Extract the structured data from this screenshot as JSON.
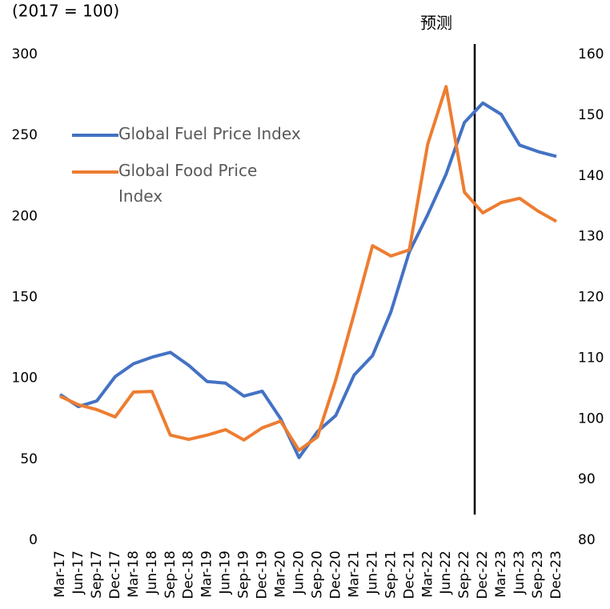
{
  "chart_data": {
    "type": "line",
    "subtitle": "(2017 = 100)",
    "annotation": "预测",
    "categories": [
      "Mar-17",
      "Jun-17",
      "Sep-17",
      "Dec-17",
      "Mar-18",
      "Jun-18",
      "Sep-18",
      "Dec-18",
      "Mar-19",
      "Jun-19",
      "Sep-19",
      "Dec-19",
      "Mar-20",
      "Jun-20",
      "Sep-20",
      "Dec-20",
      "Mar-21",
      "Jun-21",
      "Sep-21",
      "Dec-21",
      "Mar-22",
      "Jun-22",
      "Sep-22",
      "Dec-22",
      "Mar-23",
      "Jun-23",
      "Sep-23",
      "Dec-23"
    ],
    "series": [
      {
        "name": "Global Fuel Price Index",
        "color": "#4472c4",
        "axis": "y",
        "values": [
          90,
          82.5,
          86,
          101,
          109,
          113,
          116,
          108,
          98,
          97,
          89,
          92,
          75,
          51,
          67,
          77,
          102,
          114,
          141,
          178,
          201,
          226,
          258,
          270,
          263,
          244,
          240,
          237
        ]
      },
      {
        "name": "Global Food Price Index",
        "color": "#ed7d31",
        "axis": "y2",
        "values": [
          103.7,
          102.3,
          101.5,
          100.3,
          104.4,
          104.5,
          97.3,
          96.6,
          97.3,
          98.2,
          96.5,
          98.5,
          99.6,
          94.8,
          97.0,
          106.4,
          117.3,
          128.5,
          126.8,
          127.8,
          145.2,
          154.7,
          137.3,
          133.9,
          135.6,
          136.3,
          134.2,
          132.5
        ]
      }
    ],
    "ylim": [
      0,
      300
    ],
    "yticks": [
      0,
      50,
      100,
      150,
      200,
      250,
      300
    ],
    "y2lim": [
      80,
      160
    ],
    "y2ticks": [
      80,
      90,
      100,
      110,
      120,
      130,
      140,
      150,
      160
    ],
    "grid": false,
    "legend_position": "upper left"
  }
}
